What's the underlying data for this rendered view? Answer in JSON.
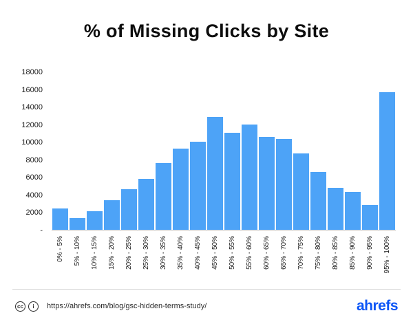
{
  "chart_data": {
    "type": "bar",
    "title": "% of Missing Clicks by Site",
    "categories": [
      "0% - 5%",
      "5% - 10%",
      "10% - 15%",
      "15% - 20%",
      "20% - 25%",
      "25% - 30%",
      "30% - 35%",
      "35% - 40%",
      "40% - 45%",
      "45% - 50%",
      "50% - 55%",
      "55% - 60%",
      "60% - 65%",
      "65% - 70%",
      "70% - 75%",
      "75% - 80%",
      "80% - 85%",
      "85% - 90%",
      "90% - 95%",
      "95% - 100%"
    ],
    "values": [
      2400,
      1350,
      2100,
      3400,
      4600,
      5800,
      7600,
      9300,
      10100,
      12900,
      11100,
      12000,
      10600,
      10400,
      8700,
      6600,
      4800,
      4300,
      2800,
      15700
    ],
    "xlabel": "",
    "ylabel": "",
    "ylim": [
      0,
      18000
    ],
    "ytick_step": 2000,
    "zero_tick_label": "-",
    "grid": false,
    "legend": false,
    "bar_color": "#4da3f7"
  },
  "footer": {
    "cc_icon": "cc",
    "attribution_icon": "i",
    "url": "https://ahrefs.com/blog/gsc-hidden-terms-study/",
    "brand": "ahrefs",
    "brand_color": "#0b55f6"
  }
}
